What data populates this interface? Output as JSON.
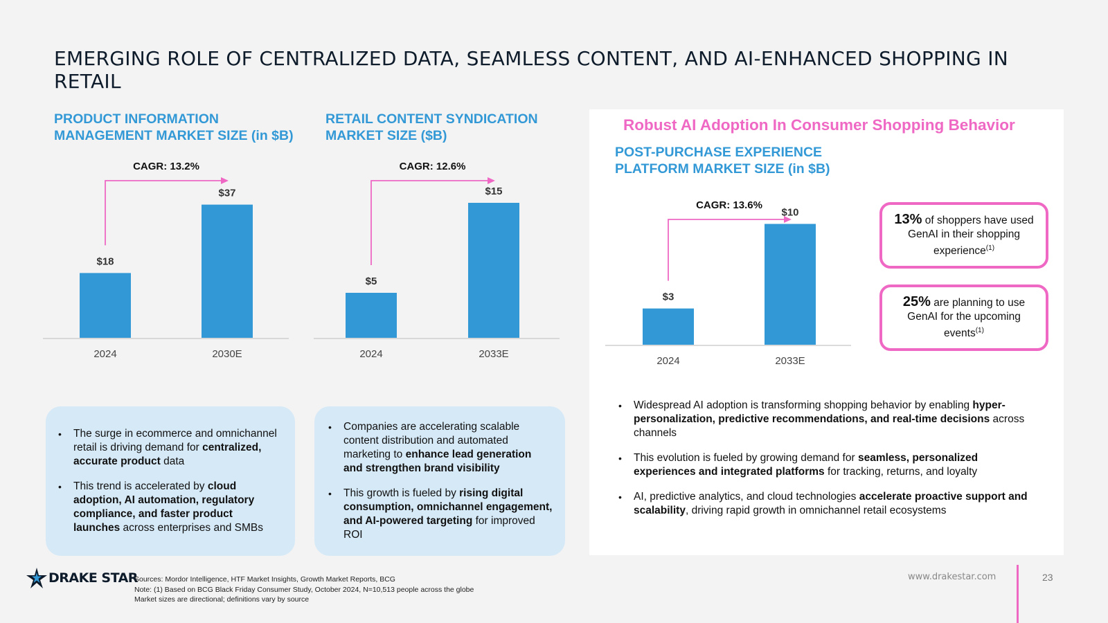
{
  "page": {
    "title": "EMERGING ROLE OF CENTRALIZED DATA, SEAMLESS CONTENT, AND AI-ENHANCED SHOPPING IN RETAIL"
  },
  "left": {
    "title": "PRODUCT INFORMATION MANAGEMENT MARKET SIZE (in $B)",
    "bullets": [
      {
        "segments": [
          {
            "t": "The surge in ecommerce and omnichannel retail is driving demand for ",
            "b": false
          },
          {
            "t": "centralized, accurate product",
            "b": true
          },
          {
            "t": " data",
            "b": false
          }
        ]
      },
      {
        "segments": [
          {
            "t": "This trend is accelerated by ",
            "b": false
          },
          {
            "t": "cloud adoption, AI automation, regulatory compliance, and faster product launches",
            "b": true
          },
          {
            "t": " across enterprises and SMBs",
            "b": false
          }
        ]
      }
    ]
  },
  "middle": {
    "title": "RETAIL CONTENT SYNDICATION MARKET SIZE ($B)",
    "bullets": [
      {
        "segments": [
          {
            "t": "Companies are accelerating scalable content distribution and automated marketing to ",
            "b": false
          },
          {
            "t": "enhance lead generation and strengthen brand visibility",
            "b": true
          }
        ]
      },
      {
        "segments": [
          {
            "t": "This growth is fueled by ",
            "b": false
          },
          {
            "t": "rising digital consumption, omnichannel engagement, and AI-powered targeting",
            "b": true
          },
          {
            "t": " for improved ROI",
            "b": false
          }
        ]
      }
    ]
  },
  "right": {
    "heading": "Robust AI Adoption In Consumer Shopping Behavior",
    "title": "POST-PURCHASE EXPERIENCE PLATFORM MARKET SIZE (in $B)",
    "callouts": [
      {
        "pct": "13%",
        "text": " of shoppers have used GenAI in their shopping experience",
        "note": "(1)"
      },
      {
        "pct": "25%",
        "text": " are planning to use GenAI for the upcoming events",
        "note": "(1)"
      }
    ],
    "bullets": [
      {
        "segments": [
          {
            "t": "Widespread AI adoption is transforming shopping behavior by enabling ",
            "b": false
          },
          {
            "t": "hyper-personalization, predictive recommendations, and real-time decisions",
            "b": true
          },
          {
            "t": " across channels",
            "b": false
          }
        ]
      },
      {
        "segments": [
          {
            "t": "This evolution is fueled by growing demand for ",
            "b": false
          },
          {
            "t": "seamless, personalized experiences and integrated platforms",
            "b": true
          },
          {
            "t": " for tracking, returns, and loyalty",
            "b": false
          }
        ]
      },
      {
        "segments": [
          {
            "t": "AI, predictive analytics, and cloud technologies ",
            "b": false
          },
          {
            "t": "accelerate proactive support and scalability",
            "b": true
          },
          {
            "t": ", driving rapid growth in omnichannel retail ecosystems",
            "b": false
          }
        ]
      }
    ]
  },
  "chart_data": [
    {
      "type": "bar",
      "title": "PRODUCT INFORMATION MANAGEMENT MARKET SIZE (in $B)",
      "categories": [
        "2024",
        "2030E"
      ],
      "values": [
        18,
        37
      ],
      "labels": [
        "$18",
        "$37"
      ],
      "cagr": "CAGR: 13.2%",
      "ylim": [
        0,
        40
      ],
      "color": "#3399d6"
    },
    {
      "type": "bar",
      "title": "RETAIL CONTENT SYNDICATION MARKET SIZE ($B)",
      "categories": [
        "2024",
        "2033E"
      ],
      "values": [
        5,
        15
      ],
      "labels": [
        "$5",
        "$15"
      ],
      "cagr": "CAGR: 12.6%",
      "ylim": [
        0,
        16
      ],
      "color": "#3399d6"
    },
    {
      "type": "bar",
      "title": "POST-PURCHASE EXPERIENCE PLATFORM MARKET SIZE (in $B)",
      "categories": [
        "2024",
        "2033E"
      ],
      "values": [
        3,
        10
      ],
      "labels": [
        "$3",
        "$10"
      ],
      "cagr": "CAGR: 13.6%",
      "ylim": [
        0,
        11
      ],
      "color": "#3399d6"
    }
  ],
  "footer": {
    "logo": "DRAKE STAR",
    "sources": "Sources: Mordor Intelligence, HTF Market Insights, Growth Market Reports, BCG",
    "note": "Note: (1) Based on BCG Black Friday Consumer Study, October 2024, N=10,513 people across the globe",
    "disclaimer": "Market sizes are directional; definitions vary by source",
    "url": "www.drakestar.com",
    "page_number": "23"
  },
  "colors": {
    "accent_blue": "#3399d6",
    "accent_pink": "#ee68c4",
    "light_blue_box": "#d6e9f7"
  }
}
